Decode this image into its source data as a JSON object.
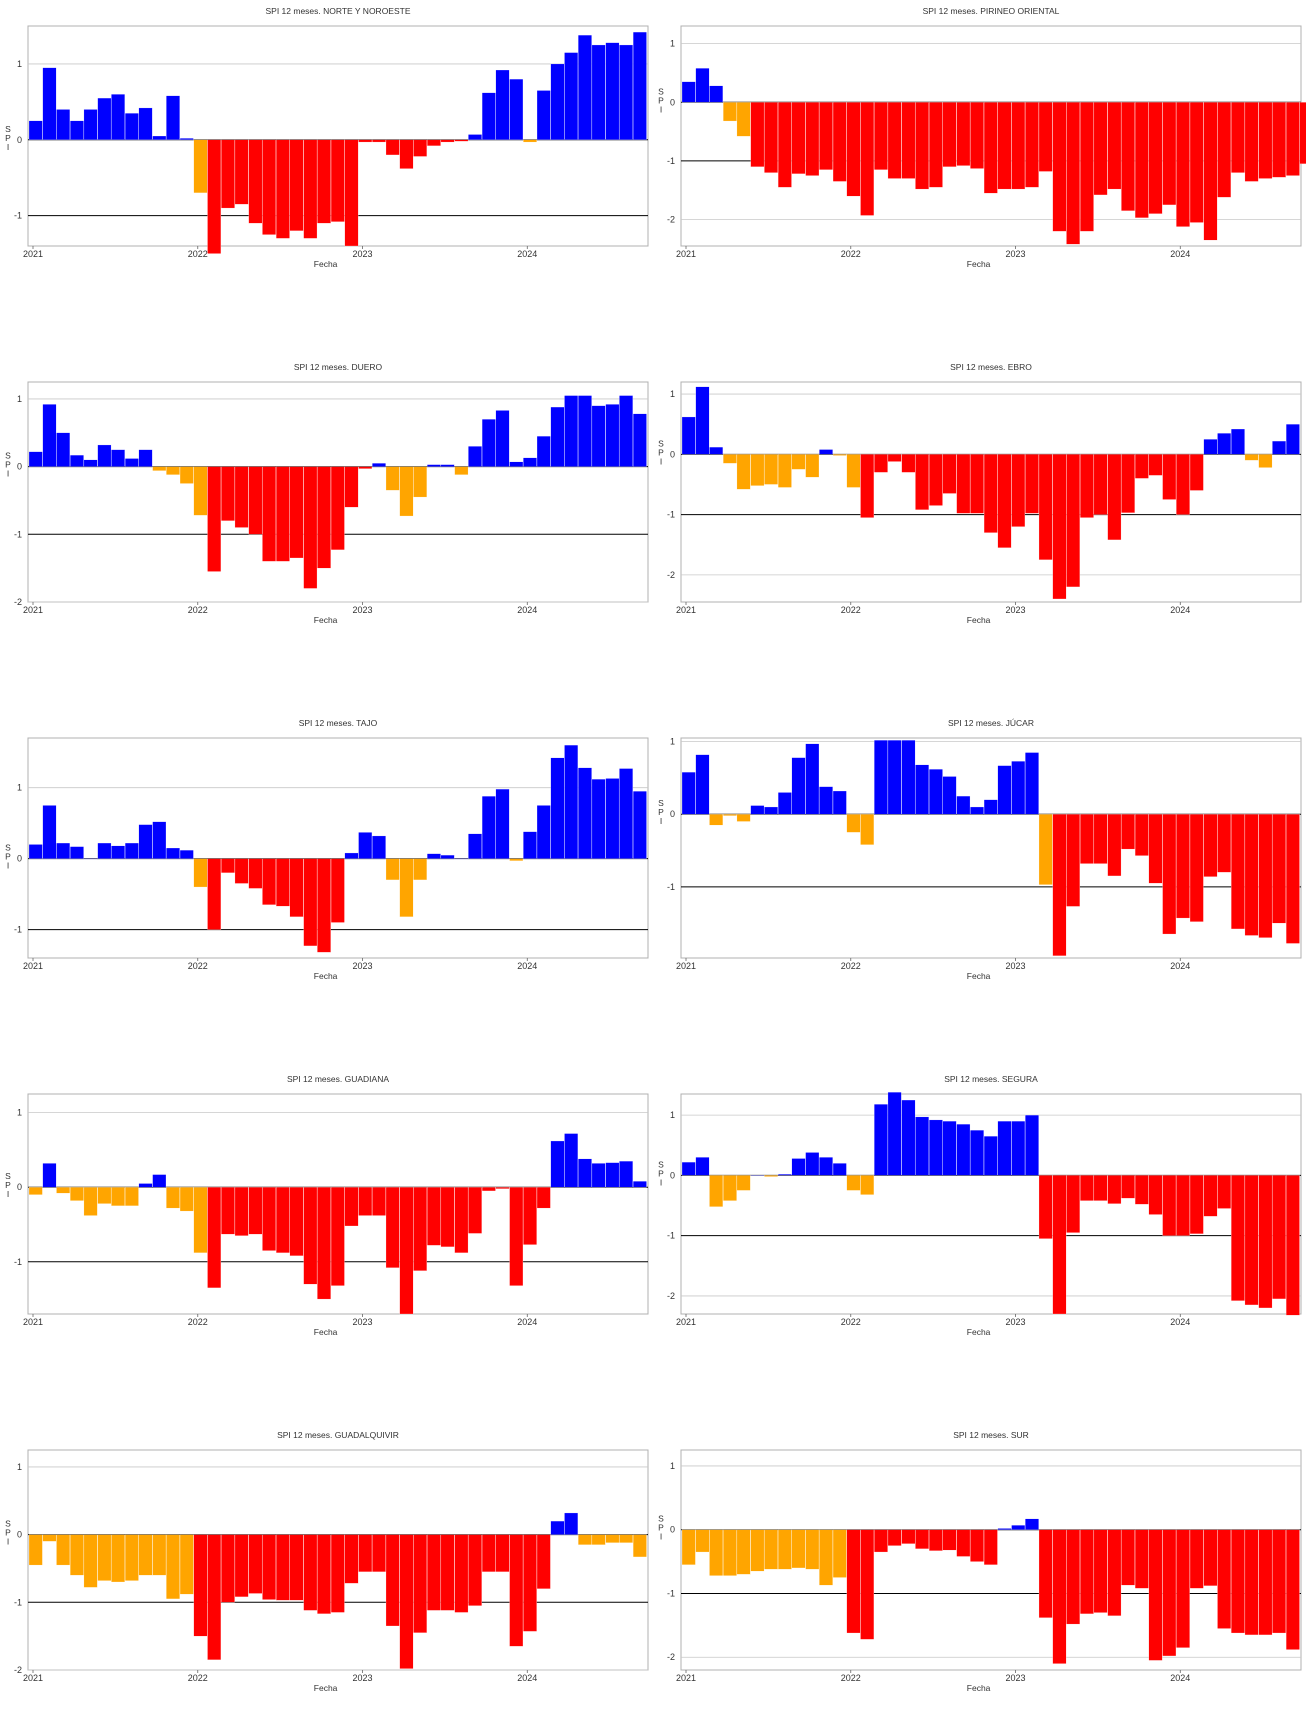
{
  "colors": {
    "wet": "#0000ff",
    "mild_dry": "#ffa500",
    "dry": "#ff0000"
  },
  "shared": {
    "xlabel": "Fecha",
    "ylabel": "SPI",
    "x_ticks": [
      "2021",
      "2022",
      "2023",
      "2024"
    ]
  },
  "chart_data": [
    {
      "type": "bar",
      "title": "SPI 12 meses. NORTE Y NOROESTE",
      "ylim": [
        -1.4,
        1.5
      ],
      "y_ticks": [
        -1,
        0,
        1
      ],
      "values": [
        0.25,
        0.95,
        0.4,
        0.25,
        0.4,
        0.55,
        0.6,
        0.35,
        0.42,
        0.05,
        0.58,
        0.02,
        -0.7,
        -1.5,
        -0.9,
        -0.85,
        -1.1,
        -1.25,
        -1.3,
        -1.2,
        -1.3,
        -1.1,
        -1.08,
        -1.4,
        -0.03,
        -0.03,
        -0.2,
        -0.38,
        -0.22,
        -0.08,
        -0.03,
        -0.02,
        0.07,
        0.62,
        0.92,
        0.8,
        -0.03,
        0.65,
        1.0,
        1.15,
        1.38,
        1.25,
        1.28,
        1.25,
        1.42
      ]
    },
    {
      "type": "bar",
      "title": "SPI 12 meses. PIRINEO ORIENTAL",
      "ylim": [
        -2.45,
        1.3
      ],
      "y_ticks": [
        -2,
        -1,
        0,
        1
      ],
      "values": [
        0.35,
        0.58,
        0.28,
        -0.32,
        -0.58,
        -1.1,
        -1.2,
        -1.45,
        -1.22,
        -1.25,
        -1.15,
        -1.35,
        -1.6,
        -1.93,
        -1.15,
        -1.3,
        -1.3,
        -1.48,
        -1.45,
        -1.1,
        -1.08,
        -1.13,
        -1.55,
        -1.48,
        -1.48,
        -1.45,
        -1.18,
        -2.2,
        -2.42,
        -2.2,
        -1.58,
        -1.48,
        -1.85,
        -1.97,
        -1.9,
        -1.75,
        -2.12,
        -2.05,
        -2.35,
        -1.62,
        -1.2,
        -1.35,
        -1.3,
        -1.28,
        -1.25,
        -1.05
      ]
    },
    {
      "type": "bar",
      "title": "SPI 12 meses. DUERO",
      "ylim": [
        -2,
        1.25
      ],
      "y_ticks": [
        -2,
        -1,
        0,
        1
      ],
      "values": [
        0.22,
        0.92,
        0.5,
        0.17,
        0.1,
        0.32,
        0.25,
        0.12,
        0.25,
        -0.06,
        -0.12,
        -0.25,
        -0.72,
        -1.55,
        -0.8,
        -0.9,
        -1.0,
        -1.4,
        -1.4,
        -1.35,
        -1.8,
        -1.5,
        -1.23,
        -0.6,
        -0.03,
        0.05,
        -0.35,
        -0.73,
        -0.45,
        0.03,
        0.03,
        -0.12,
        0.3,
        0.7,
        0.83,
        0.07,
        0.13,
        0.45,
        0.88,
        1.05,
        1.05,
        0.9,
        0.92,
        1.05,
        0.78
      ]
    },
    {
      "type": "bar",
      "title": "SPI 12 meses. EBRO",
      "ylim": [
        -2.45,
        1.2
      ],
      "y_ticks": [
        -2,
        -1,
        0,
        1
      ],
      "values": [
        0.62,
        1.12,
        0.12,
        -0.15,
        -0.58,
        -0.52,
        -0.5,
        -0.55,
        -0.25,
        -0.38,
        0.08,
        -0.02,
        -0.55,
        -1.05,
        -0.3,
        -0.12,
        -0.3,
        -0.92,
        -0.85,
        -0.65,
        -0.98,
        -0.98,
        -1.3,
        -1.55,
        -1.2,
        -0.98,
        -1.75,
        -2.4,
        -2.2,
        -1.05,
        -1.0,
        -1.42,
        -0.97,
        -0.4,
        -0.35,
        -0.75,
        -1.0,
        -0.6,
        0.25,
        0.35,
        0.42,
        -0.1,
        -0.22,
        0.22,
        0.5
      ]
    },
    {
      "type": "bar",
      "title": "SPI 12 meses. TAJO",
      "ylim": [
        -1.4,
        1.7
      ],
      "y_ticks": [
        -1,
        0,
        1
      ],
      "values": [
        0.2,
        0.75,
        0.22,
        0.17,
        0.0,
        0.22,
        0.18,
        0.22,
        0.48,
        0.52,
        0.15,
        0.12,
        -0.4,
        -1.0,
        -0.2,
        -0.35,
        -0.42,
        -0.65,
        -0.67,
        -0.82,
        -1.23,
        -1.32,
        -0.9,
        0.08,
        0.37,
        0.32,
        -0.3,
        -0.82,
        -0.3,
        0.07,
        0.05,
        0.0,
        0.35,
        0.88,
        0.98,
        -0.03,
        0.38,
        0.75,
        1.42,
        1.6,
        1.28,
        1.12,
        1.13,
        1.27,
        0.95
      ]
    },
    {
      "type": "bar",
      "title": "SPI 12 meses. JÚCAR",
      "ylim": [
        -1.98,
        1.05
      ],
      "y_ticks": [
        -1,
        0,
        1
      ],
      "values": [
        0.58,
        0.82,
        -0.15,
        -0.02,
        -0.1,
        0.12,
        0.1,
        0.3,
        0.78,
        0.97,
        0.38,
        0.32,
        -0.25,
        -0.42,
        1.02,
        1.02,
        1.02,
        0.68,
        0.62,
        0.52,
        0.25,
        0.1,
        0.2,
        0.67,
        0.73,
        0.85,
        -0.97,
        -1.95,
        -1.27,
        -0.68,
        -0.68,
        -0.85,
        -0.48,
        -0.57,
        -0.95,
        -1.65,
        -1.43,
        -1.48,
        -0.86,
        -0.8,
        -1.58,
        -1.67,
        -1.7,
        -1.5,
        -1.78
      ]
    },
    {
      "type": "bar",
      "title": "SPI 12 meses. GUADIANA",
      "ylim": [
        -1.7,
        1.25
      ],
      "y_ticks": [
        -1,
        0,
        1
      ],
      "values": [
        -0.1,
        0.32,
        -0.08,
        -0.18,
        -0.38,
        -0.22,
        -0.25,
        -0.25,
        0.05,
        0.17,
        -0.28,
        -0.32,
        -0.88,
        -1.35,
        -0.63,
        -0.65,
        -0.63,
        -0.85,
        -0.88,
        -0.92,
        -1.3,
        -1.5,
        -1.32,
        -0.52,
        -0.38,
        -0.38,
        -1.08,
        -1.7,
        -1.12,
        -0.78,
        -0.8,
        -0.88,
        -0.62,
        -0.05,
        -0.02,
        -1.32,
        -0.77,
        -0.28,
        0.62,
        0.72,
        0.38,
        0.32,
        0.33,
        0.35,
        0.08
      ]
    },
    {
      "type": "bar",
      "title": "SPI 12 meses. SEGURA",
      "ylim": [
        -2.3,
        1.35
      ],
      "y_ticks": [
        -2,
        -1,
        0,
        1
      ],
      "values": [
        0.22,
        0.3,
        -0.52,
        -0.42,
        -0.25,
        0.0,
        -0.02,
        0.02,
        0.28,
        0.38,
        0.3,
        0.2,
        -0.25,
        -0.32,
        1.18,
        1.38,
        1.25,
        0.97,
        0.92,
        0.9,
        0.85,
        0.75,
        0.65,
        0.9,
        0.9,
        1.0,
        -1.05,
        -2.3,
        -0.95,
        -0.42,
        -0.42,
        -0.47,
        -0.38,
        -0.48,
        -0.65,
        -1.0,
        -1.0,
        -0.97,
        -0.68,
        -0.55,
        -2.08,
        -2.15,
        -2.2,
        -2.05,
        -2.32
      ]
    },
    {
      "type": "bar",
      "title": "SPI 12 meses. GUADALQUIVIR",
      "ylim": [
        -2,
        1.25
      ],
      "y_ticks": [
        -2,
        -1,
        0,
        1
      ],
      "values": [
        -0.45,
        -0.1,
        -0.45,
        -0.6,
        -0.78,
        -0.68,
        -0.7,
        -0.68,
        -0.6,
        -0.6,
        -0.95,
        -0.88,
        -1.5,
        -1.85,
        -1.0,
        -0.92,
        -0.87,
        -0.96,
        -0.97,
        -0.97,
        -1.12,
        -1.17,
        -1.15,
        -0.72,
        -0.55,
        -0.55,
        -1.35,
        -1.98,
        -1.45,
        -1.12,
        -1.12,
        -1.15,
        -1.05,
        -0.55,
        -0.55,
        -1.65,
        -1.43,
        -0.8,
        0.2,
        0.32,
        -0.15,
        -0.15,
        -0.12,
        -0.12,
        -0.33
      ]
    },
    {
      "type": "bar",
      "title": "SPI 12 meses. SUR",
      "ylim": [
        -2.2,
        1.25
      ],
      "y_ticks": [
        -2,
        -1,
        0,
        1
      ],
      "values": [
        -0.55,
        -0.35,
        -0.72,
        -0.72,
        -0.7,
        -0.65,
        -0.62,
        -0.62,
        -0.6,
        -0.62,
        -0.87,
        -0.75,
        -1.62,
        -1.72,
        -0.35,
        -0.25,
        -0.22,
        -0.3,
        -0.33,
        -0.32,
        -0.42,
        -0.5,
        -0.55,
        0.02,
        0.07,
        0.17,
        -1.38,
        -2.1,
        -1.48,
        -1.32,
        -1.3,
        -1.35,
        -0.87,
        -0.92,
        -2.05,
        -1.98,
        -1.85,
        -0.92,
        -0.88,
        -1.55,
        -1.62,
        -1.65,
        -1.65,
        -1.62,
        -1.88
      ]
    }
  ]
}
